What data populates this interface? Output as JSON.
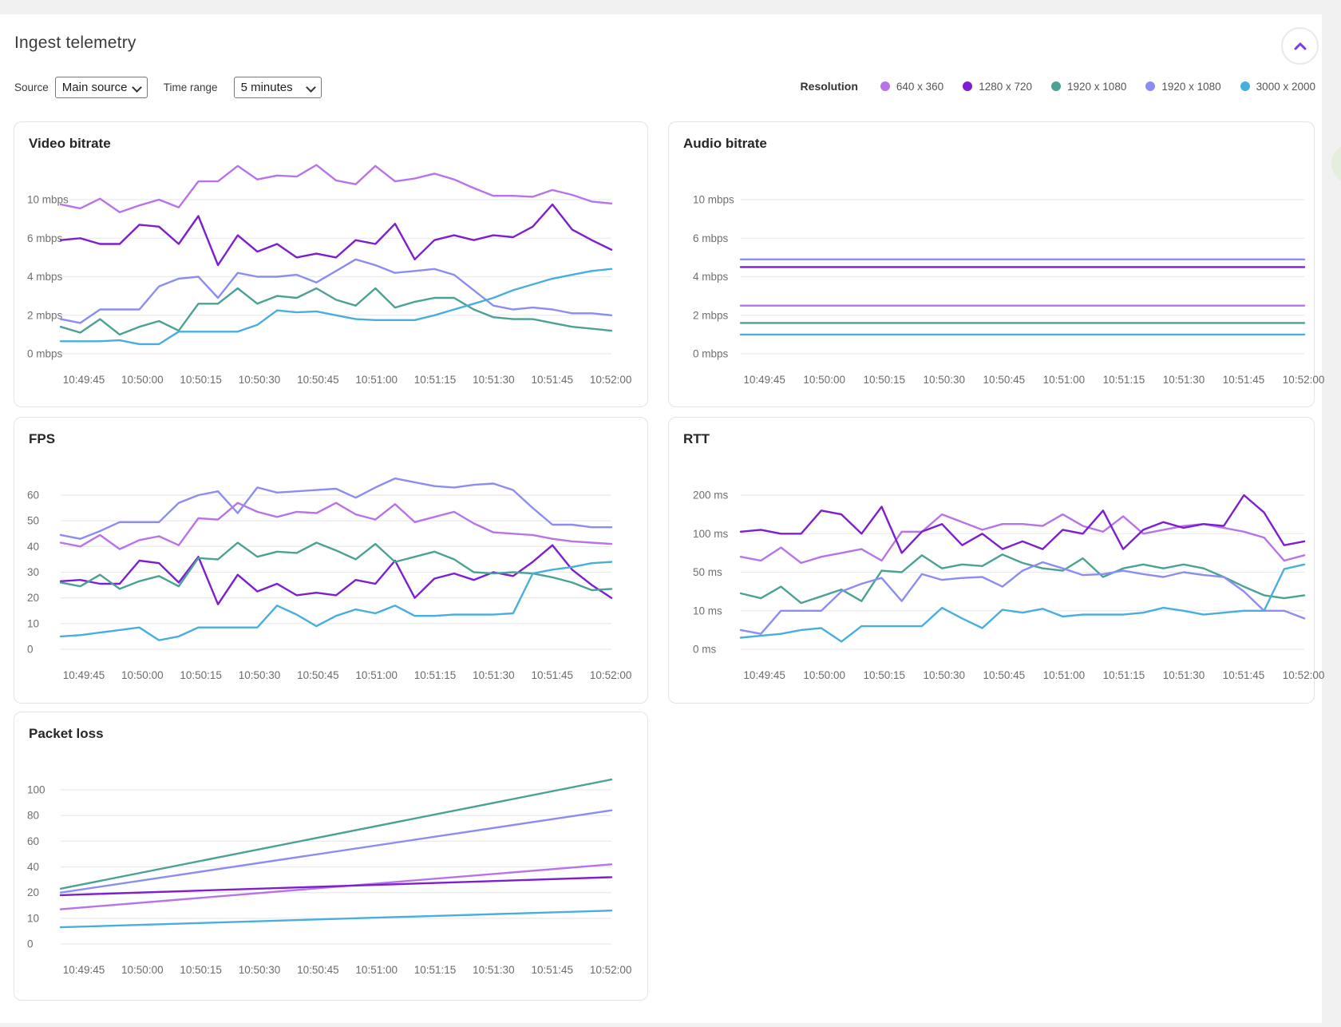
{
  "header": {
    "title": "Ingest telemetry"
  },
  "controls": {
    "source_label": "Source",
    "source_value": "Main source",
    "time_range_label": "Time range",
    "time_range_value": "5 minutes"
  },
  "legend": {
    "label": "Resolution",
    "items": [
      {
        "label": "640 x 360",
        "color": "#b873ea"
      },
      {
        "label": "1280 x 720",
        "color": "#7d1ed1"
      },
      {
        "label": "1920 x 1080",
        "color": "#4ba294"
      },
      {
        "label": "1920 x 1080",
        "color": "#8b8df2"
      },
      {
        "label": "3000 x 2000",
        "color": "#48aede"
      }
    ]
  },
  "collapse_button": {
    "icon": "chevron-up-icon",
    "accent_color": "#7c3aed"
  },
  "chart_data": [
    {
      "type": "line",
      "title": "Video bitrate",
      "x_ticks": [
        "10:49:45",
        "10:50:00",
        "10:50:15",
        "10:50:30",
        "10:50:45",
        "10:51:00",
        "10:51:15",
        "10:51:30",
        "10:51:45",
        "10:52:00"
      ],
      "y_ticks": [
        "0 mbps",
        "2 mbps",
        "4 mbps",
        "6 mbps",
        "10 mbps"
      ],
      "y_tick_values": [
        0,
        2,
        4,
        6,
        10
      ],
      "grid": true,
      "legend_position": "top-right-shared",
      "series": [
        {
          "name": "640 x 360",
          "color": "#b873ea",
          "values": [
            9.5,
            9.1,
            10.1,
            8.7,
            9.4,
            10.0,
            9.2,
            11.9,
            11.9,
            13.5,
            12.1,
            12.5,
            12.4,
            13.6,
            12.0,
            11.6,
            13.5,
            11.9,
            12.2,
            12.7,
            12.1,
            11.2,
            10.4,
            10.4,
            10.3,
            11.0,
            10.5,
            9.8,
            9.6
          ]
        },
        {
          "name": "1280 x 720",
          "color": "#7d1ed1",
          "values": [
            5.9,
            6.0,
            5.7,
            5.7,
            7.4,
            7.2,
            5.7,
            8.3,
            4.6,
            6.3,
            5.3,
            5.7,
            5.0,
            5.2,
            5.0,
            5.9,
            5.7,
            7.5,
            4.9,
            5.9,
            6.3,
            5.9,
            6.3,
            6.1,
            7.2,
            9.5,
            6.9,
            5.9,
            5.4
          ]
        },
        {
          "name": "1920 x 1080",
          "color": "#4ba294",
          "values": [
            1.4,
            1.1,
            1.8,
            1.0,
            1.4,
            1.7,
            1.2,
            2.6,
            2.6,
            3.4,
            2.6,
            3.0,
            2.9,
            3.4,
            2.8,
            2.5,
            3.4,
            2.4,
            2.7,
            2.9,
            2.9,
            2.3,
            1.9,
            1.8,
            1.8,
            1.6,
            1.4,
            1.3,
            1.2
          ]
        },
        {
          "name": "1920 x 1080",
          "color": "#8b8df2",
          "values": [
            1.8,
            1.6,
            2.3,
            2.3,
            2.3,
            3.5,
            3.9,
            4.0,
            2.9,
            4.2,
            4.0,
            4.0,
            4.1,
            3.7,
            4.3,
            4.9,
            4.6,
            4.2,
            4.3,
            4.4,
            4.1,
            3.3,
            2.5,
            2.3,
            2.4,
            2.3,
            2.1,
            2.1,
            2.0
          ]
        },
        {
          "name": "3000 x 2000",
          "color": "#48aede",
          "values": [
            0.65,
            0.65,
            0.65,
            0.7,
            0.5,
            0.5,
            1.15,
            1.15,
            1.15,
            1.15,
            1.5,
            2.25,
            2.15,
            2.2,
            2.0,
            1.8,
            1.75,
            1.75,
            1.75,
            2.0,
            2.3,
            2.6,
            2.9,
            3.3,
            3.6,
            3.9,
            4.1,
            4.3,
            4.4
          ]
        }
      ]
    },
    {
      "type": "line",
      "title": "Audio bitrate",
      "x_ticks": [
        "10:49:45",
        "10:50:00",
        "10:50:15",
        "10:50:30",
        "10:50:45",
        "10:51:00",
        "10:51:15",
        "10:51:30",
        "10:51:45",
        "10:52:00"
      ],
      "y_ticks": [
        "0 mbps",
        "2 mbps",
        "4 mbps",
        "6 mbps",
        "10 mbps"
      ],
      "y_tick_values": [
        0,
        2,
        4,
        6,
        10
      ],
      "grid": true,
      "series": [
        {
          "name": "640 x 360",
          "color": "#b873ea",
          "values": [
            2.5,
            2.5
          ]
        },
        {
          "name": "1280 x 720",
          "color": "#7d1ed1",
          "values": [
            4.5,
            4.5
          ]
        },
        {
          "name": "1920 x 1080",
          "color": "#4ba294",
          "values": [
            1.6,
            1.6
          ]
        },
        {
          "name": "1920 x 1080",
          "color": "#8b8df2",
          "values": [
            4.9,
            4.9
          ]
        },
        {
          "name": "3000 x 2000",
          "color": "#48aede",
          "values": [
            1.0,
            1.0
          ]
        }
      ]
    },
    {
      "type": "line",
      "title": "FPS",
      "x_ticks": [
        "10:49:45",
        "10:50:00",
        "10:50:15",
        "10:50:30",
        "10:50:45",
        "10:51:00",
        "10:51:15",
        "10:51:30",
        "10:51:45",
        "10:52:00"
      ],
      "y_ticks": [
        "0",
        "10",
        "20",
        "30",
        "40",
        "50",
        "60"
      ],
      "y_tick_values": [
        0,
        10,
        20,
        30,
        40,
        50,
        60
      ],
      "grid": true,
      "series": [
        {
          "name": "640 x 360",
          "color": "#b873ea",
          "values": [
            41.5,
            40,
            44.5,
            39,
            42.5,
            44,
            40.5,
            51,
            50.5,
            57,
            53.5,
            51.5,
            53.5,
            53,
            57,
            52.5,
            50.5,
            56.5,
            49.5,
            51.5,
            53.5,
            49,
            45.5,
            45,
            44.5,
            43,
            42,
            41.5,
            41
          ]
        },
        {
          "name": "1280 x 720",
          "color": "#7d1ed1",
          "values": [
            26.5,
            27,
            25.5,
            25.5,
            34.5,
            33.5,
            26,
            36,
            17.5,
            29,
            22.5,
            25.5,
            21,
            22,
            21,
            27,
            25.5,
            34.5,
            20,
            27.5,
            29.5,
            27,
            30,
            28.5,
            34,
            40.5,
            31,
            25,
            20
          ]
        },
        {
          "name": "1920 x 1080",
          "color": "#4ba294",
          "values": [
            26,
            24.5,
            29,
            23.5,
            26.5,
            28.5,
            24.5,
            35.5,
            35,
            41.5,
            36,
            38,
            37.5,
            41.5,
            38.5,
            35,
            41,
            34,
            36,
            38,
            35,
            30,
            29.5,
            30,
            29.5,
            28,
            26,
            23,
            23.5
          ]
        },
        {
          "name": "1920 x 1080",
          "color": "#8b8df2",
          "values": [
            44.5,
            43,
            46,
            49.5,
            49.5,
            49.5,
            57,
            60,
            61.5,
            53,
            63,
            61,
            61.5,
            62,
            62.5,
            59,
            63,
            66.5,
            65,
            63.5,
            63,
            64,
            64.5,
            62,
            55,
            48.5,
            48.5,
            47.5,
            47.5
          ]
        },
        {
          "name": "3000 x 2000",
          "color": "#48aede",
          "values": [
            5,
            5.5,
            6.5,
            7.5,
            8.5,
            3.5,
            5,
            8.5,
            8.5,
            8.5,
            8.5,
            17,
            13.5,
            9,
            13,
            15.5,
            14,
            17,
            13,
            13,
            13.5,
            13.5,
            13.5,
            14,
            29.5,
            31,
            32,
            33.5,
            34
          ]
        }
      ]
    },
    {
      "type": "line",
      "title": "RTT",
      "x_ticks": [
        "10:49:45",
        "10:50:00",
        "10:50:15",
        "10:50:30",
        "10:50:45",
        "10:51:00",
        "10:51:15",
        "10:51:30",
        "10:51:45",
        "10:52:00"
      ],
      "y_ticks": [
        "0 ms",
        "10 ms",
        "50 ms",
        "100 ms",
        "200 ms"
      ],
      "y_tick_values": [
        0,
        10,
        50,
        100,
        200
      ],
      "grid": true,
      "series": [
        {
          "name": "640 x 360",
          "color": "#b873ea",
          "values": [
            70,
            65,
            82,
            62,
            70,
            75,
            80,
            65,
            105,
            105,
            150,
            130,
            110,
            125,
            125,
            120,
            150,
            120,
            105,
            145,
            100,
            110,
            120,
            125,
            115,
            105,
            95,
            65,
            72
          ]
        },
        {
          "name": "1280 x 720",
          "color": "#7d1ed1",
          "values": [
            105,
            110,
            100,
            100,
            160,
            150,
            100,
            170,
            75,
            105,
            125,
            85,
            100,
            80,
            90,
            80,
            110,
            100,
            160,
            80,
            110,
            130,
            115,
            125,
            120,
            200,
            155,
            85,
            90
          ]
        },
        {
          "name": "1920 x 1080",
          "color": "#4ba294",
          "values": [
            28,
            23,
            35,
            18,
            25,
            32,
            20,
            52,
            50,
            72,
            55,
            60,
            58,
            73,
            62,
            55,
            52,
            68,
            45,
            55,
            60,
            55,
            60,
            55,
            45,
            35,
            26,
            23,
            26
          ]
        },
        {
          "name": "1920 x 1080",
          "color": "#8b8df2",
          "values": [
            5,
            4,
            10,
            10,
            10,
            30,
            38,
            44,
            20,
            48,
            42,
            44,
            45,
            35,
            52,
            63,
            55,
            47,
            48,
            52,
            48,
            45,
            50,
            47,
            45,
            30,
            10,
            10,
            8
          ]
        },
        {
          "name": "3000 x 2000",
          "color": "#48aede",
          "values": [
            3,
            3.5,
            4,
            5,
            5.5,
            2,
            6,
            6,
            6,
            6,
            13,
            8,
            5.5,
            11,
            9.5,
            12,
            8.5,
            9,
            9,
            9,
            9.5,
            13,
            10,
            9,
            9.5,
            10,
            10,
            54,
            60
          ]
        }
      ]
    },
    {
      "type": "line",
      "title": "Packet loss",
      "x_ticks": [
        "10:49:45",
        "10:50:00",
        "10:50:15",
        "10:50:30",
        "10:50:45",
        "10:51:00",
        "10:51:15",
        "10:51:30",
        "10:51:45",
        "10:52:00"
      ],
      "y_ticks": [
        "0",
        "10",
        "20",
        "40",
        "60",
        "80",
        "100"
      ],
      "y_tick_values": [
        0,
        10,
        20,
        40,
        60,
        80,
        100
      ],
      "grid": true,
      "series": [
        {
          "name": "640 x 360",
          "color": "#b873ea",
          "values": [
            13.5,
            42
          ]
        },
        {
          "name": "1280 x 720",
          "color": "#7d1ed1",
          "values": [
            19,
            32
          ]
        },
        {
          "name": "1920 x 1080",
          "color": "#4ba294",
          "values": [
            23,
            108
          ]
        },
        {
          "name": "1920 x 1080",
          "color": "#8b8df2",
          "values": [
            20,
            84
          ]
        },
        {
          "name": "3000 x 2000",
          "color": "#48aede",
          "values": [
            6.5,
            13
          ]
        }
      ]
    }
  ]
}
